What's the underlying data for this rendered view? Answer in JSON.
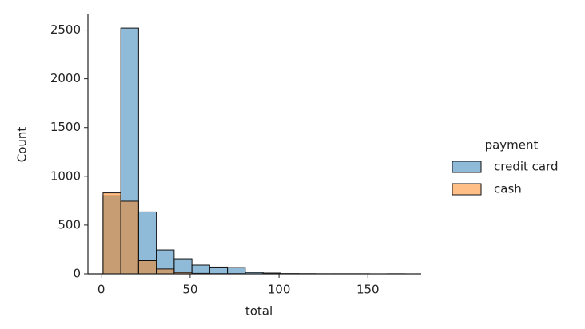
{
  "chart_data": {
    "type": "histogram",
    "xlabel": "total",
    "ylabel": "Count",
    "bins": [
      1,
      11,
      21,
      31,
      41,
      51,
      61,
      71,
      81,
      91,
      101,
      111,
      121,
      131,
      141,
      151,
      161,
      171
    ],
    "series": [
      {
        "name": "credit card",
        "color": "#1f77b4",
        "values": [
          800,
          2520,
          635,
          245,
          155,
          90,
          70,
          65,
          15,
          8,
          3,
          2,
          1,
          1,
          1,
          0,
          1
        ]
      },
      {
        "name": "cash",
        "color": "#ff7f0e",
        "values": [
          830,
          745,
          135,
          50,
          15,
          5,
          2,
          2,
          0,
          0,
          0,
          0,
          0,
          0,
          0,
          0,
          0
        ]
      }
    ],
    "xlim": [
      -7.5,
      180
    ],
    "ylim": [
      0,
      2660
    ],
    "xticks": [
      0,
      50,
      100,
      150
    ],
    "yticks": [
      0,
      500,
      1000,
      1500,
      2000,
      2500
    ],
    "legend": {
      "title": "payment",
      "position": "right"
    }
  }
}
